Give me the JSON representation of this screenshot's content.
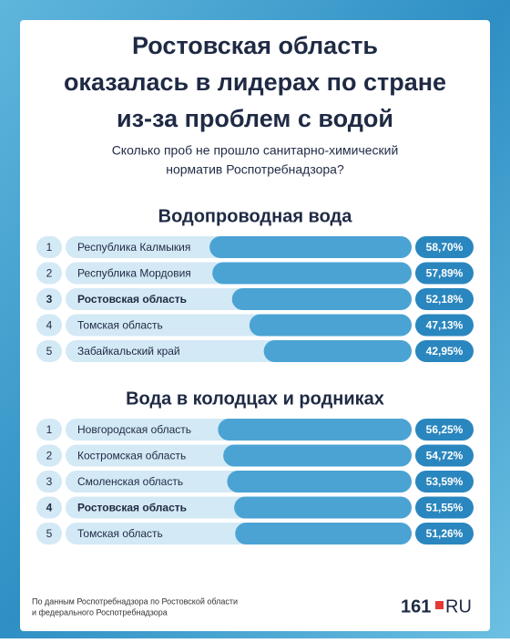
{
  "title": [
    "Ростовская область",
    "оказалась в лидерах по стране",
    "из-за проблем с водой"
  ],
  "subtitle": [
    "Сколько проб не прошло санитарно-химический",
    "норматив Роспотребнадзора?"
  ],
  "chart_data": [
    {
      "type": "bar",
      "title": "Водопроводная вода",
      "ranks": [
        "1",
        "2",
        "3",
        "4",
        "5"
      ],
      "categories": [
        "Республика Калмыкия",
        "Республика Мордовия",
        "Ростовская область",
        "Томская область",
        "Забайкальский край"
      ],
      "values": [
        58.7,
        57.89,
        52.18,
        47.13,
        42.95
      ],
      "value_labels": [
        "58,70%",
        "57,89%",
        "52,18%",
        "47,13%",
        "42,95%"
      ],
      "color": "#4ba3d4",
      "highlight": 2
    },
    {
      "type": "bar",
      "title": "Вода в колодцах и родниках",
      "ranks": [
        "1",
        "2",
        "3",
        "4",
        "5"
      ],
      "categories": [
        "Новгородская область",
        "Костромская область",
        "Смоленская область",
        "Ростовская область",
        "Томская область"
      ],
      "values": [
        56.25,
        54.72,
        53.59,
        51.55,
        51.26
      ],
      "value_labels": [
        "56,25%",
        "54,72%",
        "53,59%",
        "51,55%",
        "51,26%"
      ],
      "color": "#4ba3d4",
      "highlight": 3
    }
  ],
  "footer": [
    "По данным Роспотребнадзора по Ростовской области",
    "и федерального Роспотребнадзора"
  ],
  "logo": [
    "161",
    "RU"
  ]
}
